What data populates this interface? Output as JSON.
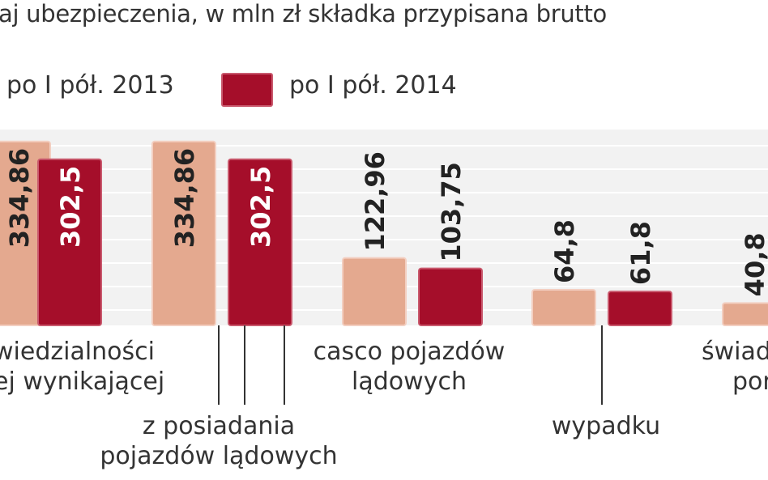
{
  "title": "aj ubezpieczenia, w mln zł składka przypisana brutto",
  "legend": [
    {
      "label": "po I pół. 2013",
      "color": "#e4a98f"
    },
    {
      "label": "po I pół. 2014",
      "color": "#a50e2a"
    }
  ],
  "chart_data": {
    "type": "bar",
    "series": [
      {
        "name": "po I pół. 2013",
        "values": [
          334.86,
          334.86,
          122.96,
          64.8,
          40.8
        ]
      },
      {
        "name": "po I pół. 2014",
        "values": [
          302.5,
          302.5,
          103.75,
          61.8,
          null
        ]
      }
    ],
    "value_labels": [
      [
        "334,86",
        "334,86",
        "122,96",
        "64,8",
        "40,8"
      ],
      [
        "302,5",
        "302,5",
        "103,75",
        "61,8",
        ""
      ]
    ],
    "categories": [
      "wiedzialności\nej wynikającej",
      "z posiadania\npojazdów lądowych",
      "casco pojazdów\nlądowych",
      "wypadku",
      "świad\npor"
    ],
    "grid": true,
    "series_colors": [
      "#e4a98f",
      "#a50e2a"
    ],
    "plot_background": "#f2f2f2",
    "grid_color": "#ffffff",
    "inside_label_color": "#ffffff",
    "outside_label_color": "#222222"
  }
}
